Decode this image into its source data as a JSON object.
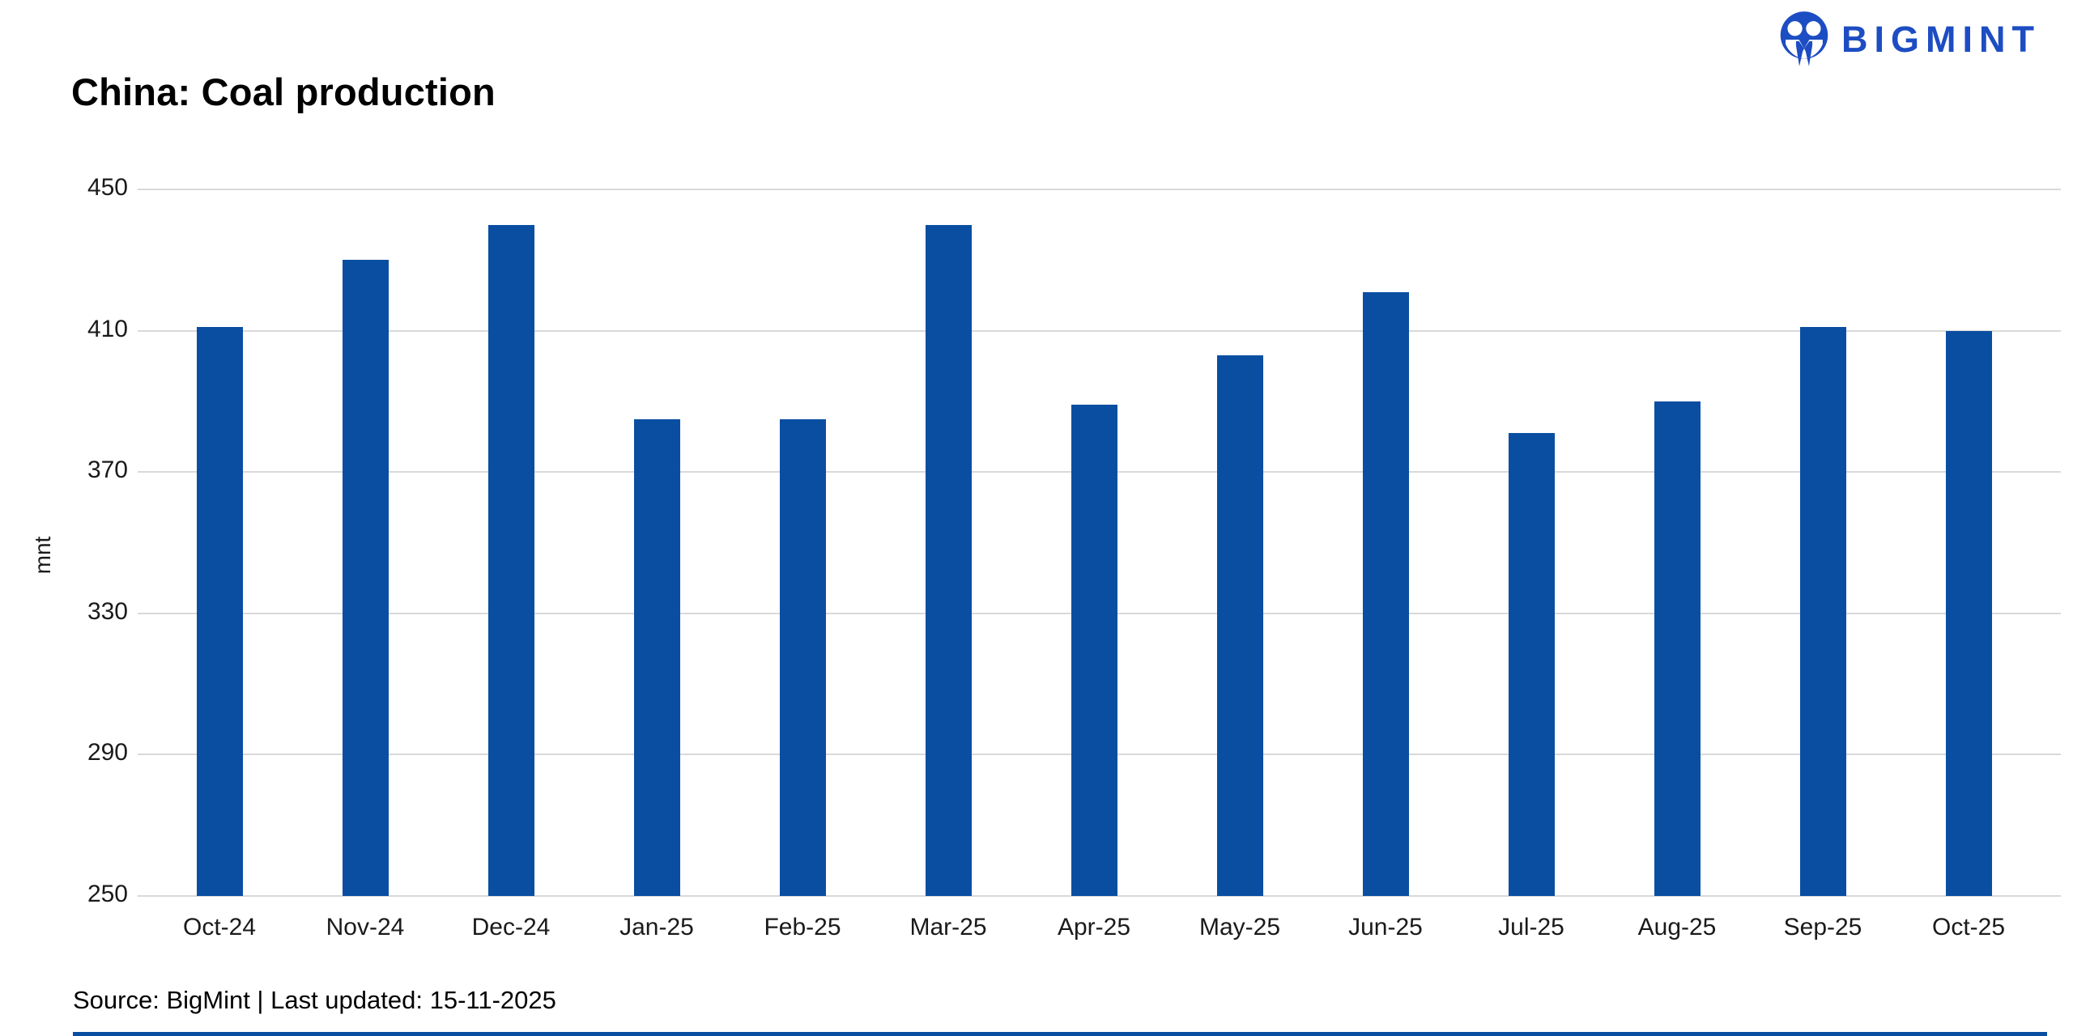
{
  "header": {
    "title": "China: Coal production",
    "logo_text": "BIGMINT",
    "logo_color": "#1d4dc3"
  },
  "chart_data": {
    "type": "bar",
    "title": "China: Coal production",
    "categories": [
      "Oct-24",
      "Nov-24",
      "Dec-24",
      "Jan-25",
      "Feb-25",
      "Mar-25",
      "Apr-25",
      "May-25",
      "Jun-25",
      "Jul-25",
      "Aug-25",
      "Sep-25",
      "Oct-25"
    ],
    "values": [
      411,
      430,
      440,
      385,
      385,
      440,
      389,
      403,
      421,
      381,
      390,
      411,
      410
    ],
    "xlabel": "",
    "ylabel": "mnt",
    "ylim": [
      250,
      450
    ],
    "yticks": [
      250,
      290,
      330,
      370,
      410,
      450
    ],
    "grid": true,
    "legend_position": "none",
    "bar_color": "#0a4ea2",
    "gridline_color": "#d9d9d9"
  },
  "footer": {
    "source_line": "Source: BigMint | Last updated: 15-11-2025",
    "rule_color": "#0a4ea2"
  }
}
